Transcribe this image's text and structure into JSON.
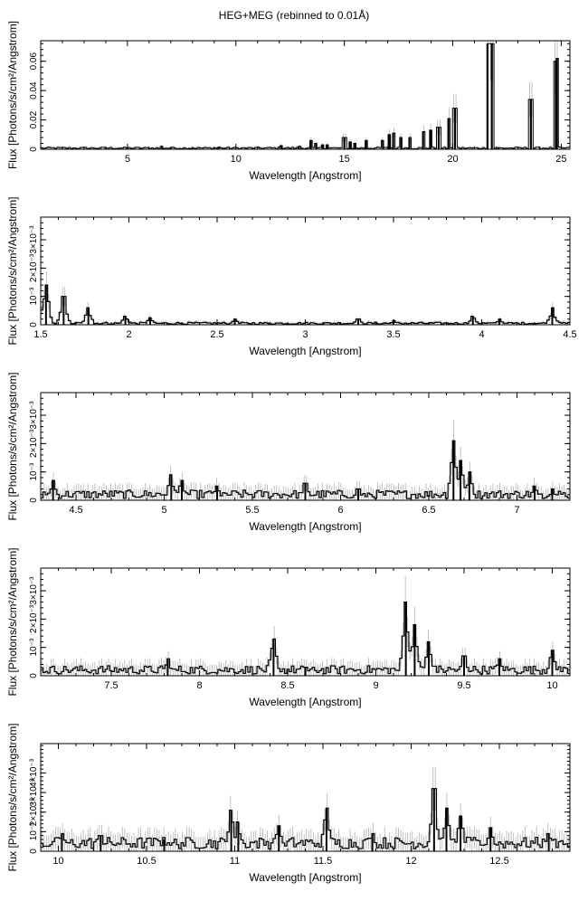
{
  "title": "HEG+MEG (rebinned to 0.01Å)",
  "colors": {
    "axis": "#000000",
    "step": "#000000",
    "error": "#b4b4b4",
    "background": "#ffffff"
  },
  "chart_data": [
    {
      "type": "line",
      "xlabel": "Wavelength [Angstrom]",
      "ylabel": "Flux [Photons/s/cm²/Angstrom]",
      "xlim": [
        1.0,
        25.4
      ],
      "ylim": [
        0,
        0.074
      ],
      "xticks": [
        5,
        10,
        15,
        20,
        25
      ],
      "yticks": [
        0,
        0.02,
        0.04,
        0.06
      ],
      "ytick_labels": [
        "0",
        "0.02",
        "0.04",
        "0.06"
      ],
      "baseline": 0.0008,
      "lines": [
        {
          "x": 6.6,
          "y": 0.002
        },
        {
          "x": 9.2,
          "y": 0.0015
        },
        {
          "x": 12.1,
          "y": 0.0025
        },
        {
          "x": 12.9,
          "y": 0.002
        },
        {
          "x": 13.45,
          "y": 0.006
        },
        {
          "x": 13.7,
          "y": 0.004
        },
        {
          "x": 14.0,
          "y": 0.003
        },
        {
          "x": 14.2,
          "y": 0.003
        },
        {
          "x": 15.0,
          "y": 0.008
        },
        {
          "x": 15.26,
          "y": 0.005
        },
        {
          "x": 15.5,
          "y": 0.004
        },
        {
          "x": 16.0,
          "y": 0.006
        },
        {
          "x": 16.78,
          "y": 0.006
        },
        {
          "x": 17.05,
          "y": 0.01
        },
        {
          "x": 17.1,
          "y": 0.01
        },
        {
          "x": 17.25,
          "y": 0.011
        },
        {
          "x": 17.62,
          "y": 0.008
        },
        {
          "x": 18.0,
          "y": 0.008
        },
        {
          "x": 18.63,
          "y": 0.012
        },
        {
          "x": 18.97,
          "y": 0.013
        },
        {
          "x": 19.35,
          "y": 0.015
        },
        {
          "x": 19.8,
          "y": 0.021
        },
        {
          "x": 20.1,
          "y": 0.028
        },
        {
          "x": 21.6,
          "y": 0.072
        },
        {
          "x": 21.8,
          "y": 0.072
        },
        {
          "x": 22.1,
          "y": 0.001
        },
        {
          "x": 23.6,
          "y": 0.034
        },
        {
          "x": 24.75,
          "y": 0.06
        },
        {
          "x": 24.8,
          "y": 0.062
        }
      ]
    },
    {
      "type": "line",
      "xlabel": "Wavelength [Angstrom]",
      "ylabel": "Flux [Photons/s/cm²/Angstrom]",
      "xlim": [
        1.5,
        4.5
      ],
      "ylim": [
        0,
        0.0038
      ],
      "xticks": [
        1.5,
        2,
        2.5,
        3,
        3.5,
        4,
        4.5
      ],
      "yticks": [
        0,
        0.001,
        0.002,
        0.003
      ],
      "ytick_labels": [
        "0",
        "10⁻³",
        "2×10⁻³",
        "3×10⁻³"
      ],
      "baseline": 5e-05,
      "lines": [
        {
          "x": 1.53,
          "y": 0.0014
        },
        {
          "x": 1.63,
          "y": 0.001
        },
        {
          "x": 1.77,
          "y": 0.0006
        },
        {
          "x": 1.98,
          "y": 0.0003
        },
        {
          "x": 2.12,
          "y": 0.00025
        },
        {
          "x": 2.6,
          "y": 0.0002
        },
        {
          "x": 3.3,
          "y": 0.0002
        },
        {
          "x": 3.5,
          "y": 0.00015
        },
        {
          "x": 3.95,
          "y": 0.0003
        },
        {
          "x": 4.1,
          "y": 0.0002
        },
        {
          "x": 4.4,
          "y": 0.0006
        }
      ]
    },
    {
      "type": "line",
      "xlabel": "Wavelength [Angstrom]",
      "ylabel": "Flux [Photons/s/cm²/Angstrom]",
      "xlim": [
        4.3,
        7.3
      ],
      "ylim": [
        0,
        0.0038
      ],
      "xticks": [
        4.5,
        5,
        5.5,
        6,
        6.5,
        7
      ],
      "yticks": [
        0,
        0.001,
        0.002,
        0.003
      ],
      "ytick_labels": [
        "0",
        "10⁻³",
        "2×10⁻³",
        "3×10⁻³"
      ],
      "baseline": 0.0002,
      "lines": [
        {
          "x": 4.37,
          "y": 0.0007
        },
        {
          "x": 5.04,
          "y": 0.0009
        },
        {
          "x": 5.1,
          "y": 0.0007
        },
        {
          "x": 5.3,
          "y": 0.0005
        },
        {
          "x": 5.8,
          "y": 0.0006
        },
        {
          "x": 6.1,
          "y": 0.0004
        },
        {
          "x": 6.64,
          "y": 0.0021
        },
        {
          "x": 6.68,
          "y": 0.0014
        },
        {
          "x": 6.73,
          "y": 0.001
        },
        {
          "x": 7.1,
          "y": 0.0005
        },
        {
          "x": 7.2,
          "y": 0.0004
        }
      ]
    },
    {
      "type": "line",
      "xlabel": "Wavelength [Angstrom]",
      "ylabel": "Flux [Photons/s/cm²/Angstrom]",
      "xlim": [
        7.1,
        10.1
      ],
      "ylim": [
        0,
        0.0038
      ],
      "xticks": [
        7.5,
        8,
        8.5,
        9,
        9.5,
        10
      ],
      "yticks": [
        0,
        0.001,
        0.002,
        0.003
      ],
      "ytick_labels": [
        "0",
        "10⁻³",
        "2×10⁻³",
        "3×10⁻³"
      ],
      "baseline": 0.0002,
      "lines": [
        {
          "x": 7.82,
          "y": 0.0006
        },
        {
          "x": 8.42,
          "y": 0.0013
        },
        {
          "x": 8.6,
          "y": 0.0003
        },
        {
          "x": 9.17,
          "y": 0.0026
        },
        {
          "x": 9.22,
          "y": 0.0018
        },
        {
          "x": 9.3,
          "y": 0.0012
        },
        {
          "x": 9.5,
          "y": 0.0007
        },
        {
          "x": 9.7,
          "y": 0.0006
        },
        {
          "x": 10.0,
          "y": 0.0009
        }
      ]
    },
    {
      "type": "line",
      "xlabel": "Wavelength [Angstrom]",
      "ylabel": "Flux [Photons/s/cm²/Angstrom]",
      "xlim": [
        9.9,
        12.9
      ],
      "ylim": [
        0,
        0.0055
      ],
      "xticks": [
        10,
        10.5,
        11,
        11.5,
        12,
        12.5
      ],
      "yticks": [
        0,
        0.001,
        0.002,
        0.003,
        0.004
      ],
      "ytick_labels": [
        "0",
        "10⁻³",
        "2×10⁻³",
        "3×10⁻³",
        "4×10⁻³"
      ],
      "baseline": 0.0004,
      "lines": [
        {
          "x": 10.02,
          "y": 0.0009
        },
        {
          "x": 10.24,
          "y": 0.0008
        },
        {
          "x": 10.6,
          "y": 0.0006
        },
        {
          "x": 10.98,
          "y": 0.0021
        },
        {
          "x": 11.02,
          "y": 0.0015
        },
        {
          "x": 11.25,
          "y": 0.0013
        },
        {
          "x": 11.52,
          "y": 0.0022
        },
        {
          "x": 11.78,
          "y": 0.0009
        },
        {
          "x": 12.13,
          "y": 0.0032
        },
        {
          "x": 12.2,
          "y": 0.0022
        },
        {
          "x": 12.28,
          "y": 0.0018
        },
        {
          "x": 12.45,
          "y": 0.0012
        },
        {
          "x": 12.78,
          "y": 0.0009
        }
      ]
    }
  ]
}
